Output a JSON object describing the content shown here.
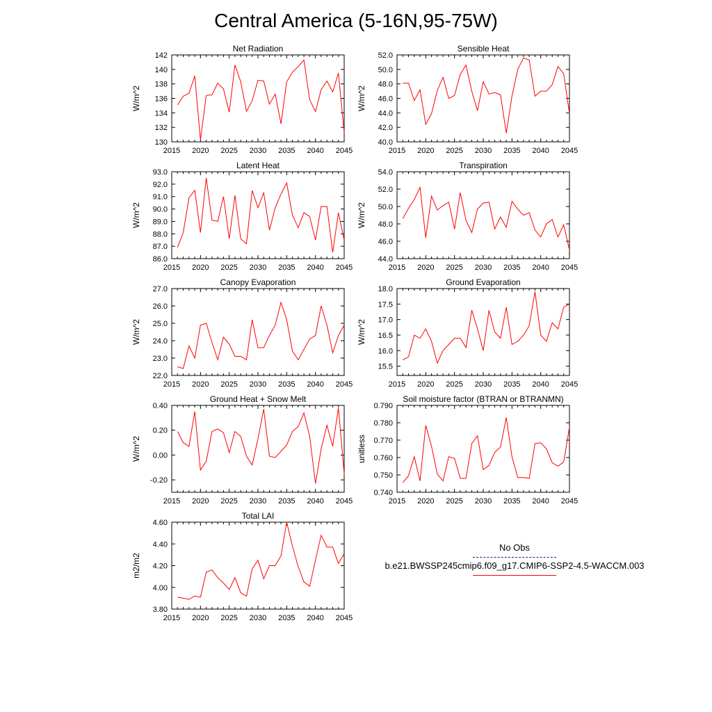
{
  "page": {
    "title": "Central America (5-16N,95-75W)"
  },
  "legend": {
    "obs_label": "No Obs",
    "model_label": "b.e21.BWSSP245cmip6.f09_g17.CMIP6-SSP2-4.5-WACCM.003",
    "obs_color": "#1a1a8c",
    "model_color": "#ff0000"
  },
  "chart_data": [
    {
      "type": "line",
      "title": "Net Radiation",
      "xlabel": "",
      "ylabel": "W/m^2",
      "xlim": [
        2015,
        2045
      ],
      "ylim": [
        130,
        142
      ],
      "xticks": [
        "2015",
        "2020",
        "2025",
        "2030",
        "2035",
        "2040",
        "2045"
      ],
      "yticks": [
        "130",
        "132",
        "134",
        "136",
        "138",
        "140",
        "142"
      ],
      "x": [
        2016,
        2017,
        2018,
        2019,
        2020,
        2021,
        2022,
        2023,
        2024,
        2025,
        2026,
        2027,
        2028,
        2029,
        2030,
        2031,
        2032,
        2033,
        2034,
        2035,
        2036,
        2037,
        2038,
        2039,
        2040,
        2041,
        2042,
        2043,
        2044,
        2045
      ],
      "series": [
        {
          "name": "b.e21.BWSSP245cmip6.f09_g17.CMIP6-SSP2-4.5-WACCM.003",
          "color": "#ff0000",
          "values": [
            135.1,
            136.3,
            136.7,
            139.1,
            130.3,
            136.4,
            136.5,
            138.1,
            137.3,
            134.1,
            140.6,
            138.3,
            134.2,
            135.7,
            138.5,
            138.4,
            135.2,
            136.6,
            132.5,
            138.3,
            139.6,
            140.4,
            141.3,
            135.8,
            134.2,
            137.2,
            138.4,
            136.9,
            139.5,
            131.3
          ]
        }
      ]
    },
    {
      "type": "line",
      "title": "Sensible Heat",
      "xlabel": "",
      "ylabel": "W/m^2",
      "xlim": [
        2015,
        2045
      ],
      "ylim": [
        40,
        52
      ],
      "xticks": [
        "2015",
        "2020",
        "2025",
        "2030",
        "2035",
        "2040",
        "2045"
      ],
      "yticks": [
        "40.0",
        "42.0",
        "44.0",
        "46.0",
        "48.0",
        "50.0",
        "52.0"
      ],
      "x": [
        2016,
        2017,
        2018,
        2019,
        2020,
        2021,
        2022,
        2023,
        2024,
        2025,
        2026,
        2027,
        2028,
        2029,
        2030,
        2031,
        2032,
        2033,
        2034,
        2035,
        2036,
        2037,
        2038,
        2039,
        2040,
        2041,
        2042,
        2043,
        2044,
        2045
      ],
      "series": [
        {
          "name": "b.e21.BWSSP245cmip6.f09_g17.CMIP6-SSP2-4.5-WACCM.003",
          "color": "#ff0000",
          "values": [
            48.1,
            48.1,
            45.7,
            47.2,
            42.4,
            43.9,
            47.1,
            48.9,
            46.0,
            46.4,
            49.3,
            50.6,
            47.0,
            44.3,
            48.3,
            46.6,
            46.8,
            46.5,
            41.2,
            46.3,
            50.0,
            51.6,
            51.3,
            46.3,
            47.0,
            47.0,
            47.9,
            50.4,
            49.4,
            43.9
          ]
        }
      ]
    },
    {
      "type": "line",
      "title": "Latent Heat",
      "xlabel": "",
      "ylabel": "W/m^2",
      "xlim": [
        2015,
        2045
      ],
      "ylim": [
        86,
        93
      ],
      "xticks": [
        "2015",
        "2020",
        "2025",
        "2030",
        "2035",
        "2040",
        "2045"
      ],
      "yticks": [
        "86.0",
        "87.0",
        "88.0",
        "89.0",
        "90.0",
        "91.0",
        "92.0",
        "93.0"
      ],
      "x": [
        2016,
        2017,
        2018,
        2019,
        2020,
        2021,
        2022,
        2023,
        2024,
        2025,
        2026,
        2027,
        2028,
        2029,
        2030,
        2031,
        2032,
        2033,
        2034,
        2035,
        2036,
        2037,
        2038,
        2039,
        2040,
        2041,
        2042,
        2043,
        2044,
        2045
      ],
      "series": [
        {
          "name": "b.e21.BWSSP245cmip6.f09_g17.CMIP6-SSP2-4.5-WACCM.003",
          "color": "#ff0000",
          "values": [
            86.9,
            88.1,
            90.9,
            91.5,
            88.1,
            92.5,
            89.1,
            89.0,
            91.0,
            87.6,
            91.1,
            87.6,
            87.2,
            91.5,
            90.1,
            91.3,
            88.3,
            90.1,
            91.2,
            92.1,
            89.5,
            88.5,
            89.7,
            89.4,
            87.5,
            90.2,
            90.2,
            86.5,
            89.7,
            87.5
          ]
        }
      ]
    },
    {
      "type": "line",
      "title": "Transpiration",
      "xlabel": "",
      "ylabel": "W/m^2",
      "xlim": [
        2015,
        2045
      ],
      "ylim": [
        44,
        54
      ],
      "xticks": [
        "2015",
        "2020",
        "2025",
        "2030",
        "2035",
        "2040",
        "2045"
      ],
      "yticks": [
        "44.0",
        "46.0",
        "48.0",
        "50.0",
        "52.0",
        "54.0"
      ],
      "x": [
        2016,
        2017,
        2018,
        2019,
        2020,
        2021,
        2022,
        2023,
        2024,
        2025,
        2026,
        2027,
        2028,
        2029,
        2030,
        2031,
        2032,
        2033,
        2034,
        2035,
        2036,
        2037,
        2038,
        2039,
        2040,
        2041,
        2042,
        2043,
        2044,
        2045
      ],
      "series": [
        {
          "name": "b.e21.BWSSP245cmip6.f09_g17.CMIP6-SSP2-4.5-WACCM.003",
          "color": "#ff0000",
          "values": [
            48.6,
            49.8,
            50.8,
            52.2,
            46.4,
            51.2,
            49.6,
            50.1,
            50.5,
            47.4,
            51.6,
            48.4,
            47.0,
            49.7,
            50.4,
            50.5,
            47.4,
            48.8,
            47.6,
            50.6,
            49.7,
            49.0,
            49.3,
            47.3,
            46.5,
            48.0,
            48.5,
            46.5,
            47.9,
            45.0
          ]
        }
      ]
    },
    {
      "type": "line",
      "title": "Canopy Evaporation",
      "xlabel": "",
      "ylabel": "W/m^2",
      "xlim": [
        2015,
        2045
      ],
      "ylim": [
        22,
        27
      ],
      "xticks": [
        "2015",
        "2020",
        "2025",
        "2030",
        "2035",
        "2040",
        "2045"
      ],
      "yticks": [
        "22.0",
        "23.0",
        "24.0",
        "25.0",
        "26.0",
        "27.0"
      ],
      "x": [
        2016,
        2017,
        2018,
        2019,
        2020,
        2021,
        2022,
        2023,
        2024,
        2025,
        2026,
        2027,
        2028,
        2029,
        2030,
        2031,
        2032,
        2033,
        2034,
        2035,
        2036,
        2037,
        2038,
        2039,
        2040,
        2041,
        2042,
        2043,
        2044,
        2045
      ],
      "series": [
        {
          "name": "b.e21.BWSSP245cmip6.f09_g17.CMIP6-SSP2-4.5-WACCM.003",
          "color": "#ff0000",
          "values": [
            22.5,
            22.4,
            23.7,
            23.0,
            24.9,
            25.0,
            23.9,
            22.9,
            24.2,
            23.8,
            23.1,
            23.1,
            22.9,
            25.2,
            23.6,
            23.6,
            24.3,
            24.9,
            26.2,
            25.2,
            23.4,
            22.9,
            23.5,
            24.1,
            24.3,
            26.0,
            24.9,
            23.3,
            24.3,
            24.9
          ]
        }
      ]
    },
    {
      "type": "line",
      "title": "Ground Evaporation",
      "xlabel": "",
      "ylabel": "W/m^2",
      "xlim": [
        2015,
        2045
      ],
      "ylim": [
        15.2,
        18
      ],
      "xticks": [
        "2015",
        "2020",
        "2025",
        "2030",
        "2035",
        "2040",
        "2045"
      ],
      "yticks": [
        "15.5",
        "16.0",
        "16.5",
        "17.0",
        "17.5",
        "18.0"
      ],
      "x": [
        2016,
        2017,
        2018,
        2019,
        2020,
        2021,
        2022,
        2023,
        2024,
        2025,
        2026,
        2027,
        2028,
        2029,
        2030,
        2031,
        2032,
        2033,
        2034,
        2035,
        2036,
        2037,
        2038,
        2039,
        2040,
        2041,
        2042,
        2043,
        2044,
        2045
      ],
      "series": [
        {
          "name": "b.e21.BWSSP245cmip6.f09_g17.CMIP6-SSP2-4.5-WACCM.003",
          "color": "#ff0000",
          "values": [
            15.7,
            15.8,
            16.5,
            16.4,
            16.7,
            16.3,
            15.6,
            16.0,
            16.2,
            16.4,
            16.4,
            16.1,
            17.3,
            16.7,
            16.0,
            17.3,
            16.6,
            16.4,
            17.4,
            16.2,
            16.3,
            16.5,
            16.8,
            17.9,
            16.5,
            16.3,
            16.9,
            16.7,
            17.4,
            17.5
          ]
        }
      ]
    },
    {
      "type": "line",
      "title": "Ground Heat + Snow Melt",
      "xlabel": "",
      "ylabel": "W/m^2",
      "xlim": [
        2015,
        2045
      ],
      "ylim": [
        -0.3,
        0.4
      ],
      "xticks": [
        "2015",
        "2020",
        "2025",
        "2030",
        "2035",
        "2040",
        "2045"
      ],
      "yticks": [
        "-0.20",
        "0.00",
        "0.20",
        "0.40"
      ],
      "ytick_values": [
        -0.2,
        0.0,
        0.2,
        0.4
      ],
      "x": [
        2016,
        2017,
        2018,
        2019,
        2020,
        2021,
        2022,
        2023,
        2024,
        2025,
        2026,
        2027,
        2028,
        2029,
        2030,
        2031,
        2032,
        2033,
        2034,
        2035,
        2036,
        2037,
        2038,
        2039,
        2040,
        2041,
        2042,
        2043,
        2044,
        2045
      ],
      "series": [
        {
          "name": "b.e21.BWSSP245cmip6.f09_g17.CMIP6-SSP2-4.5-WACCM.003",
          "color": "#ff0000",
          "values": [
            0.19,
            0.1,
            0.07,
            0.35,
            -0.12,
            -0.05,
            0.19,
            0.21,
            0.18,
            0.02,
            0.19,
            0.15,
            -0.01,
            -0.08,
            0.13,
            0.37,
            -0.01,
            -0.02,
            0.03,
            0.08,
            0.19,
            0.23,
            0.34,
            0.15,
            -0.23,
            0.05,
            0.24,
            0.07,
            0.38,
            -0.15
          ]
        }
      ]
    },
    {
      "type": "line",
      "title": "Soil moisture factor (BTRAN or BTRANMN)",
      "xlabel": "",
      "ylabel": "unitless",
      "xlim": [
        2015,
        2045
      ],
      "ylim": [
        0.74,
        0.79
      ],
      "xticks": [
        "2015",
        "2020",
        "2025",
        "2030",
        "2035",
        "2040",
        "2045"
      ],
      "yticks": [
        "0.740",
        "0.750",
        "0.760",
        "0.770",
        "0.780",
        "0.790"
      ],
      "x": [
        2016,
        2017,
        2018,
        2019,
        2020,
        2021,
        2022,
        2023,
        2024,
        2025,
        2026,
        2027,
        2028,
        2029,
        2030,
        2031,
        2032,
        2033,
        2034,
        2035,
        2036,
        2037,
        2038,
        2039,
        2040,
        2041,
        2042,
        2043,
        2044,
        2045
      ],
      "series": [
        {
          "name": "b.e21.BWSSP245cmip6.f09_g17.CMIP6-SSP2-4.5-WACCM.003",
          "color": "#ff0000",
          "values": [
            0.7455,
            0.7495,
            0.7605,
            0.7465,
            0.7785,
            0.7665,
            0.7505,
            0.7465,
            0.7605,
            0.7595,
            0.748,
            0.748,
            0.768,
            0.7725,
            0.753,
            0.7555,
            0.763,
            0.766,
            0.783,
            0.7605,
            0.7485,
            0.7485,
            0.748,
            0.768,
            0.7685,
            0.765,
            0.757,
            0.755,
            0.7575,
            0.7775
          ]
        }
      ]
    },
    {
      "type": "line",
      "title": "Total LAI",
      "xlabel": "",
      "ylabel": "m2/m2",
      "xlim": [
        2015,
        2045
      ],
      "ylim": [
        3.8,
        4.6
      ],
      "xticks": [
        "2015",
        "2020",
        "2025",
        "2030",
        "2035",
        "2040",
        "2045"
      ],
      "yticks": [
        "3.80",
        "4.00",
        "4.20",
        "4.40",
        "4.60"
      ],
      "x": [
        2016,
        2017,
        2018,
        2019,
        2020,
        2021,
        2022,
        2023,
        2024,
        2025,
        2026,
        2027,
        2028,
        2029,
        2030,
        2031,
        2032,
        2033,
        2034,
        2035,
        2036,
        2037,
        2038,
        2039,
        2040,
        2041,
        2042,
        2043,
        2044,
        2045
      ],
      "series": [
        {
          "name": "b.e21.BWSSP245cmip6.f09_g17.CMIP6-SSP2-4.5-WACCM.003",
          "color": "#ff0000",
          "values": [
            3.91,
            3.9,
            3.89,
            3.92,
            3.91,
            4.14,
            4.16,
            4.09,
            4.04,
            3.98,
            4.09,
            3.95,
            3.92,
            4.17,
            4.25,
            4.08,
            4.2,
            4.2,
            4.29,
            4.6,
            4.38,
            4.19,
            4.05,
            4.01,
            4.25,
            4.48,
            4.37,
            4.37,
            4.22,
            4.31
          ]
        }
      ]
    }
  ]
}
